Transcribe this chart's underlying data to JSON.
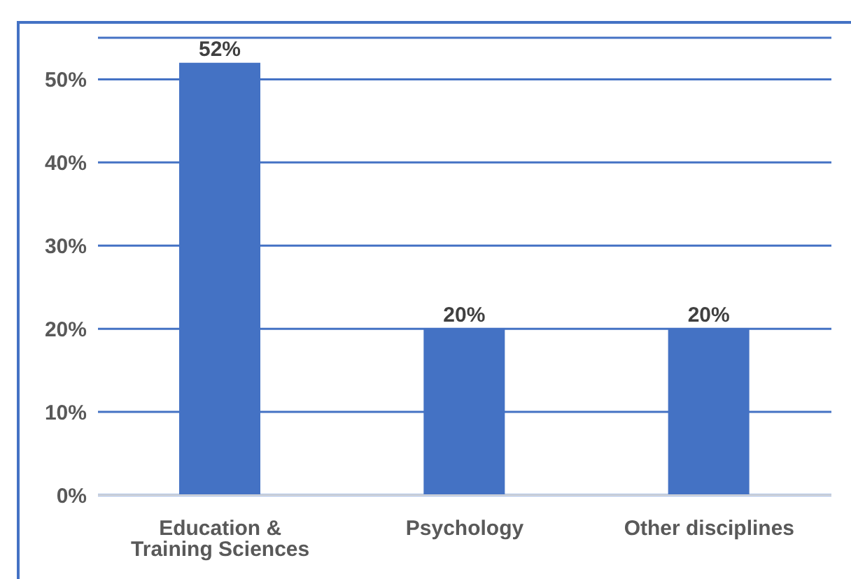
{
  "chart_data": {
    "type": "bar",
    "categories": [
      "Education & Training Sciences",
      "Psychology",
      "Other disciplines"
    ],
    "values": [
      52,
      20,
      20
    ],
    "color": "#4472c4",
    "value_labels": [
      "52%",
      "20%",
      "20%"
    ],
    "ylim": [
      0,
      55
    ],
    "yticks": [
      {
        "value": 0,
        "label": "0%"
      },
      {
        "value": 10,
        "label": "10%"
      },
      {
        "value": 20,
        "label": "20%"
      },
      {
        "value": 30,
        "label": "30%"
      },
      {
        "value": 40,
        "label": "40%"
      },
      {
        "value": 50,
        "label": "50%"
      }
    ],
    "grid": "y"
  }
}
